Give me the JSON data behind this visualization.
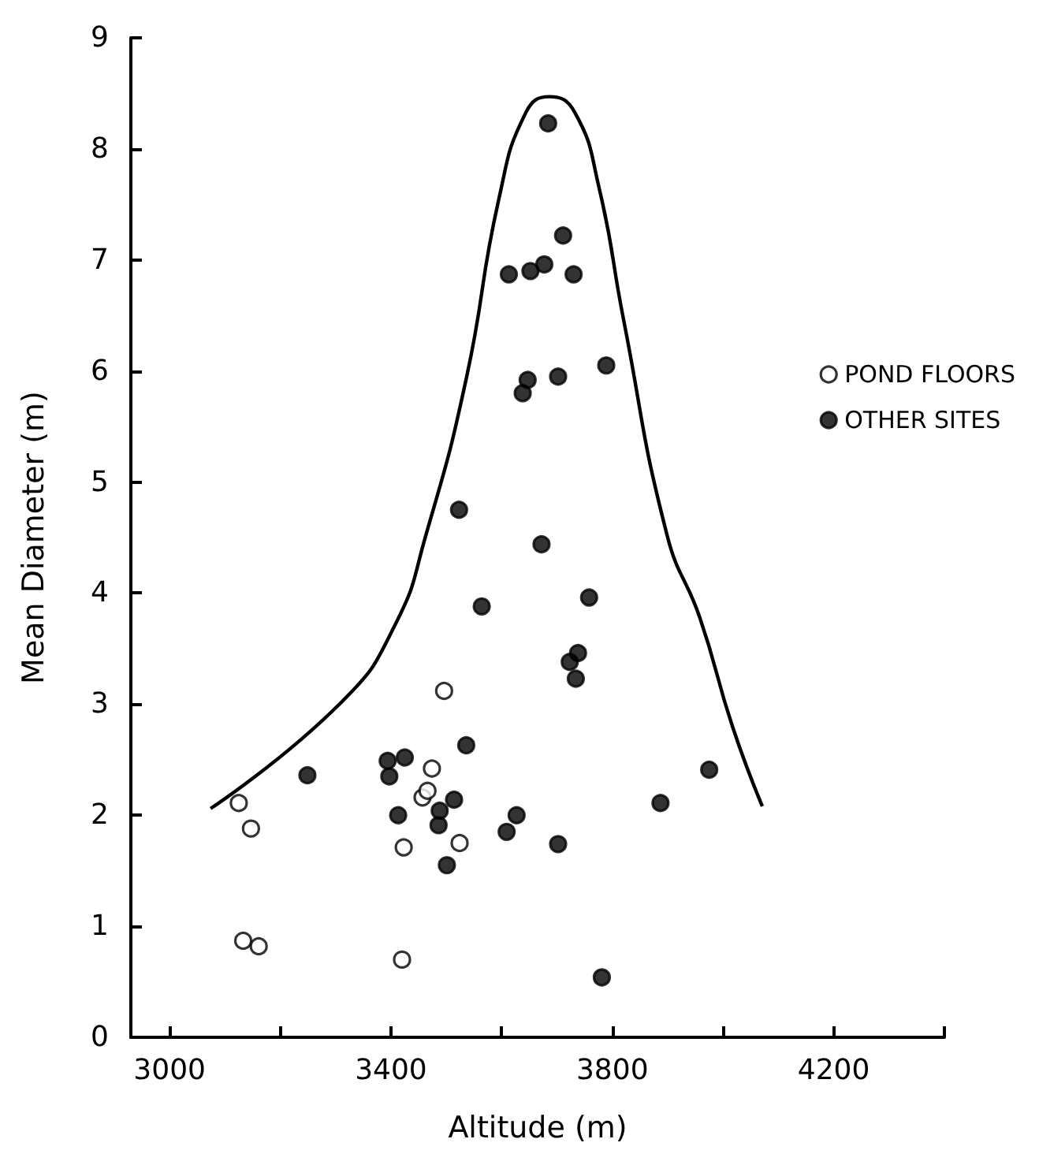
{
  "chart_data": {
    "type": "scatter",
    "xlabel": "Altitude (m)",
    "ylabel": "Mean Diameter (m)",
    "xlim": [
      2930,
      4400
    ],
    "xticks": [
      3000,
      {
        "value": 3200,
        "label": null
      },
      3400,
      {
        "value": 3600,
        "label": null
      },
      3800,
      {
        "value": 4000,
        "label": null
      },
      4200,
      {
        "value": 4400,
        "label": null
      }
    ],
    "ylim": [
      0,
      9
    ],
    "yticks": [
      0,
      1,
      2,
      3,
      4,
      5,
      6,
      7,
      8,
      9
    ],
    "grid": false,
    "legend": "top right",
    "marker": "circle",
    "series": [
      {
        "name": "POND FLOORS",
        "color": "#ffffff",
        "x": [
          3125,
          3147,
          3133,
          3161,
          3420,
          3423,
          3524,
          3496,
          3474,
          3457,
          3466
        ],
        "values": [
          2.11,
          1.88,
          0.87,
          0.82,
          0.7,
          1.71,
          1.75,
          3.12,
          2.42,
          2.16,
          2.22
        ]
      },
      {
        "name": "OTHER SITES",
        "color": "#000000",
        "x": [
          3672,
          3564,
          3758,
          3738,
          3723,
          3734,
          3536,
          3394,
          3425,
          3397,
          3249,
          3514,
          3413,
          3488,
          3486,
          3627,
          3609,
          3702,
          3501,
          3781,
          3887,
          3975,
          3684,
          3711,
          3613,
          3652,
          3677,
          3730,
          3789,
          3647,
          3638,
          3702,
          3523
        ],
        "values": [
          4.44,
          3.88,
          3.96,
          3.46,
          3.38,
          3.23,
          2.63,
          2.49,
          2.52,
          2.35,
          2.36,
          2.14,
          2.0,
          2.04,
          1.91,
          2.0,
          1.85,
          1.74,
          1.55,
          0.54,
          2.11,
          2.41,
          8.23,
          7.22,
          6.87,
          6.9,
          6.96,
          6.87,
          6.05,
          5.92,
          5.8,
          5.95,
          4.75
        ]
      },
      {
        "type": "line",
        "color": "#000000",
        "marker": "none",
        "x": [
          3074,
          3311,
          3409,
          3463,
          3536,
          3595,
          3644,
          3686,
          3732,
          3776,
          3820,
          3899,
          3958,
          4017,
          4071
        ],
        "values": [
          2.06,
          3.02,
          3.73,
          4.52,
          5.93,
          7.55,
          8.33,
          8.47,
          8.33,
          7.65,
          6.47,
          4.52,
          3.78,
          2.8,
          2.08
        ]
      }
    ]
  }
}
